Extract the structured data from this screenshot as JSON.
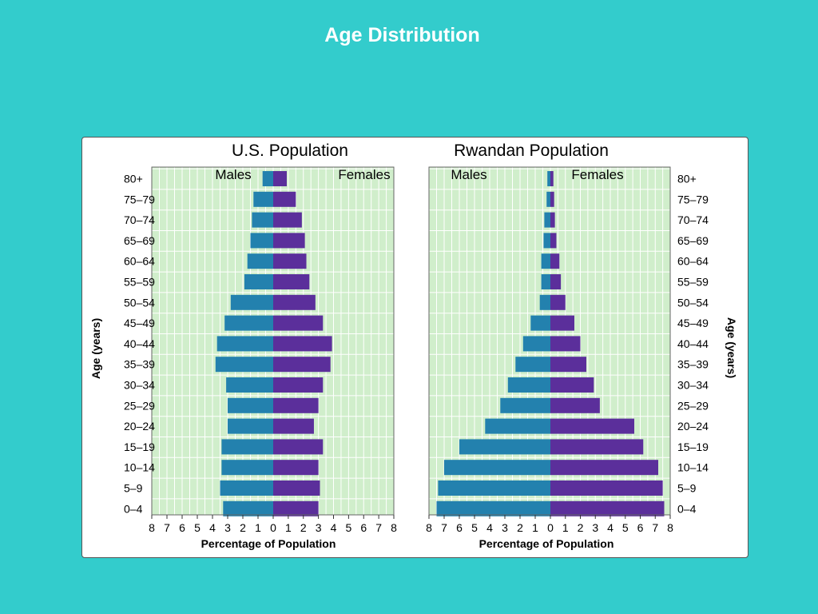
{
  "slide": {
    "title": "Age Distribution"
  },
  "colors": {
    "background": "#33cccc",
    "plot_bg": "#d0eecb",
    "male": "#2381ae",
    "female": "#5b2f9b"
  },
  "chart_data": [
    {
      "type": "bar",
      "orientation": "horizontal-pyramid",
      "title": "U.S. Population",
      "left_label": "Males",
      "right_label": "Females",
      "xlabel": "Percentage of Population",
      "ylabel": "Age (years)",
      "xlim": [
        0,
        8
      ],
      "x_ticks": [
        "8",
        "7",
        "6",
        "5",
        "4",
        "3",
        "2",
        "1",
        "0",
        "1",
        "2",
        "3",
        "4",
        "5",
        "6",
        "7",
        "8"
      ],
      "categories": [
        "80+",
        "75–79",
        "70–74",
        "65–69",
        "60–64",
        "55–59",
        "50–54",
        "45–49",
        "40–44",
        "35–39",
        "30–34",
        "25–29",
        "20–24",
        "15–19",
        "10–14",
        "5–9",
        "0–4"
      ],
      "series": [
        {
          "name": "Males",
          "values": [
            0.7,
            1.3,
            1.4,
            1.5,
            1.7,
            1.9,
            2.8,
            3.2,
            3.7,
            3.8,
            3.1,
            3.0,
            3.0,
            3.4,
            3.4,
            3.5,
            3.3
          ]
        },
        {
          "name": "Females",
          "values": [
            0.9,
            1.5,
            1.9,
            2.1,
            2.2,
            2.4,
            2.8,
            3.3,
            3.9,
            3.8,
            3.3,
            3.0,
            2.7,
            3.3,
            3.0,
            3.1,
            3.0
          ]
        }
      ],
      "grid": true,
      "legend": "none"
    },
    {
      "type": "bar",
      "orientation": "horizontal-pyramid",
      "title": "Rwandan Population",
      "left_label": "Males",
      "right_label": "Females",
      "xlabel": "Percentage of Population",
      "ylabel": "Age (years)",
      "xlim": [
        0,
        8
      ],
      "x_ticks": [
        "8",
        "7",
        "6",
        "5",
        "4",
        "3",
        "2",
        "1",
        "0",
        "1",
        "2",
        "3",
        "4",
        "5",
        "6",
        "7",
        "8"
      ],
      "categories": [
        "80+",
        "75–79",
        "70–74",
        "65–69",
        "60–64",
        "55–59",
        "50–54",
        "45–49",
        "40–44",
        "35–39",
        "30–34",
        "25–29",
        "20–24",
        "15–19",
        "10–14",
        "5–9",
        "0–4"
      ],
      "series": [
        {
          "name": "Males",
          "values": [
            0.2,
            0.25,
            0.4,
            0.45,
            0.6,
            0.6,
            0.7,
            1.3,
            1.8,
            2.3,
            2.8,
            3.3,
            4.3,
            6.0,
            7.0,
            7.4,
            7.5
          ]
        },
        {
          "name": "Females",
          "values": [
            0.2,
            0.25,
            0.3,
            0.4,
            0.6,
            0.7,
            1.0,
            1.6,
            2.0,
            2.4,
            2.9,
            3.3,
            5.6,
            6.2,
            7.2,
            7.5,
            7.6
          ]
        }
      ],
      "grid": true,
      "legend": "none"
    }
  ]
}
